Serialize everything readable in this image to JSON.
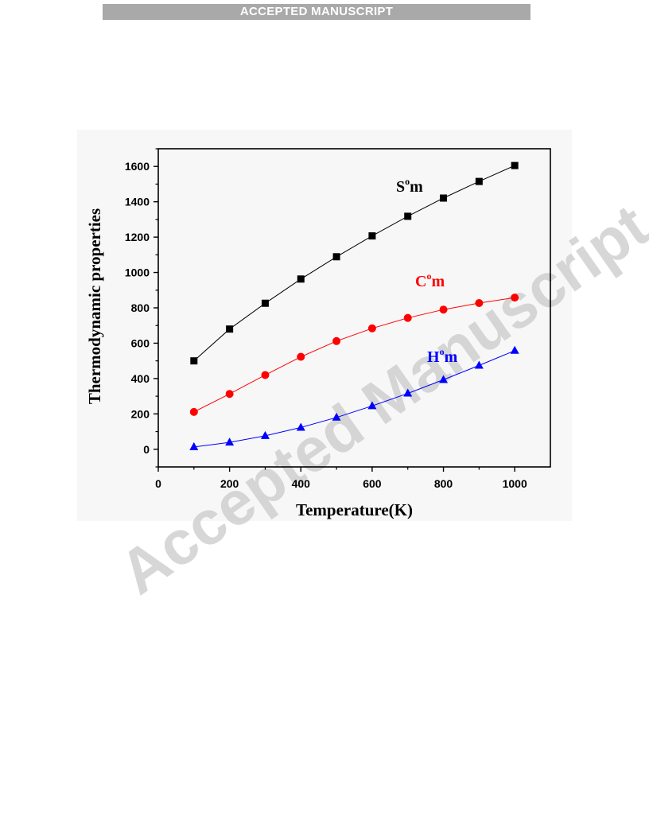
{
  "header": {
    "banner_text": "ACCEPTED MANUSCRIPT"
  },
  "watermark": {
    "text": "Accepted Manuscript"
  },
  "chart_data": {
    "type": "line",
    "title": "",
    "xlabel": "Temperature(K)",
    "ylabel": "Thermodynamic properties",
    "xlim": [
      0,
      1100
    ],
    "ylim": [
      -100,
      1700
    ],
    "xticks": [
      0,
      200,
      400,
      600,
      800,
      1000
    ],
    "yticks": [
      0,
      200,
      400,
      600,
      800,
      1000,
      1200,
      1400,
      1600
    ],
    "x": [
      100,
      200,
      300,
      400,
      500,
      600,
      700,
      800,
      900,
      1000
    ],
    "grid": false,
    "series": [
      {
        "name": "S",
        "sup": "o",
        "suffix": "m",
        "color": "#000000",
        "marker": "square",
        "values": [
          500,
          680,
          826,
          963,
          1089,
          1207,
          1318,
          1421,
          1515,
          1605
        ]
      },
      {
        "name": "C",
        "sup": "o",
        "suffix": "m",
        "color": "#ff0000",
        "marker": "circle",
        "values": [
          211,
          313,
          420,
          523,
          612,
          684,
          743,
          790,
          827,
          858
        ]
      },
      {
        "name": "H",
        "sup": "o",
        "suffix": "m",
        "color": "#0000ff",
        "marker": "triangle",
        "values": [
          13,
          39,
          76,
          123,
          180,
          245,
          316,
          393,
          474,
          558
        ]
      }
    ]
  }
}
